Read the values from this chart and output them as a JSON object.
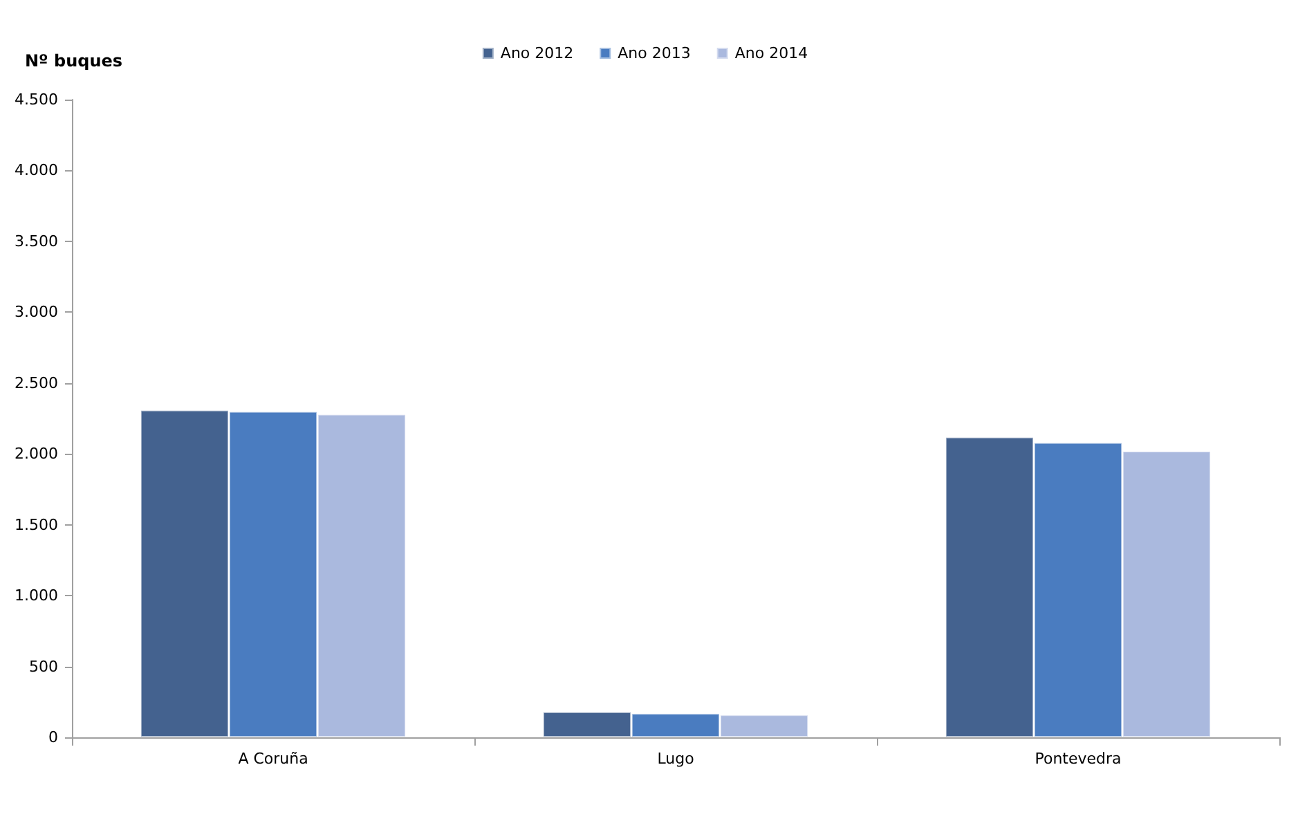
{
  "chart_data": {
    "type": "bar",
    "ylabel": "Nº buques",
    "categories": [
      "A Coruña",
      "Lugo",
      "Pontevedra"
    ],
    "series": [
      {
        "name": "Ano 2012",
        "color": "#44628f",
        "values": [
          2310,
          180,
          2120
        ]
      },
      {
        "name": "Ano 2013",
        "color": "#4a7cc0",
        "values": [
          2300,
          170,
          2080
        ]
      },
      {
        "name": "Ano 2014",
        "color": "#aab9de",
        "values": [
          2280,
          160,
          2020
        ]
      }
    ],
    "ylim": [
      0,
      4500
    ],
    "yticks": [
      0,
      500,
      {
        "value": 1000,
        "label": "1.000"
      },
      {
        "value": 1500,
        "label": "1.500"
      },
      {
        "value": 2000,
        "label": "2.000"
      },
      {
        "value": 2500,
        "label": "2.500"
      },
      {
        "value": 3000,
        "label": "3.000"
      },
      {
        "value": 3500,
        "label": "3.500"
      },
      {
        "value": 4000,
        "label": "4.000"
      },
      {
        "value": 4500,
        "label": "4.500"
      }
    ],
    "grid": false,
    "legend": "top"
  }
}
